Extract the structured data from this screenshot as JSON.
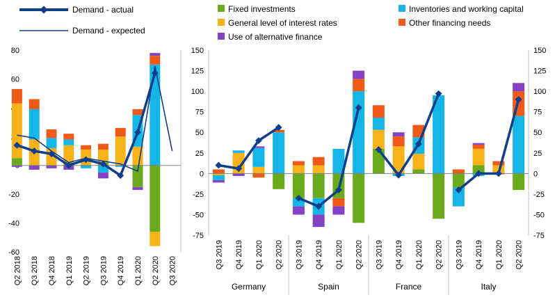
{
  "colors": {
    "fixed_investments": "#6aaa1d",
    "general_interest_rates": "#f7b21a",
    "inventories_working_capital": "#15b5e8",
    "other_financing": "#f05a19",
    "alternative_finance": "#8443c4",
    "demand_line": "#0f3f8a"
  },
  "legend": {
    "demand_actual": "Demand - actual",
    "demand_expected": "Demand - expected",
    "fixed_investments": "Fixed investments",
    "general_interest_rates": "General level of interest rates",
    "alternative_finance": "Use of alternative finance",
    "inventories_working_capital": "Inventories and working capital",
    "other_financing": "Other financing needs"
  },
  "chart_data": [
    {
      "type": "bar",
      "subtype": "stacked bar with lines",
      "categories": [
        "Q2 2018",
        "Q3 2018",
        "Q4 2018",
        "Q1 2019",
        "Q2 2019",
        "Q3 2019",
        "Q4 2019",
        "Q1 2020",
        "Q2 2020",
        "Q3 2020"
      ],
      "ylim": [
        -60,
        80
      ],
      "yticks": [
        "80",
        "60",
        "40",
        "20",
        "0",
        "-20",
        "-40",
        "-60"
      ],
      "series": [
        {
          "name": "Fixed investments",
          "values": [
            5,
            0,
            0,
            2,
            0,
            2,
            0,
            -15,
            -46,
            null
          ]
        },
        {
          "name": "General level of interest rates",
          "values": [
            38,
            18,
            12,
            12,
            11,
            9,
            20,
            13,
            -10,
            null
          ]
        },
        {
          "name": "Inventories and working capital",
          "values": [
            0,
            21,
            7,
            4,
            -2,
            -5,
            -1,
            22,
            70,
            null
          ]
        },
        {
          "name": "Other financing needs",
          "values": [
            10,
            7,
            6,
            4,
            3,
            4,
            6,
            4,
            6,
            null
          ]
        },
        {
          "name": "Use of alternative finance",
          "values": [
            -1,
            -3,
            -2,
            -3,
            0,
            -4,
            0,
            -2,
            2,
            null
          ]
        },
        {
          "name": "Demand - actual",
          "values": [
            14,
            10,
            8,
            0,
            4,
            1,
            -7,
            23,
            64,
            null
          ]
        },
        {
          "name": "Demand - expected",
          "values": [
            21,
            19,
            10,
            2,
            5,
            3,
            1,
            -4,
            69,
            10
          ]
        }
      ]
    },
    {
      "type": "bar",
      "subtype": "stacked bar with line, grouped by country",
      "groups": [
        "Germany",
        "Spain",
        "France",
        "Italy"
      ],
      "categories": [
        "Q3 2019",
        "Q4 2019",
        "Q1 2020",
        "Q2 2020"
      ],
      "ylim": [
        -75,
        150
      ],
      "yticks": [
        "150",
        "125",
        "100",
        "75",
        "50",
        "25",
        "0",
        "-25",
        "-50",
        "-75"
      ],
      "series": [
        {
          "name": "Fixed investments",
          "values": [
            [
              0,
              0,
              0,
              -19
            ],
            [
              -30,
              -30,
              -30,
              -60
            ],
            [
              30,
              0,
              5,
              -55
            ],
            [
              -17,
              10,
              0,
              -20
            ]
          ]
        },
        {
          "name": "General level of interest rates",
          "values": [
            [
              -2,
              25,
              8,
              0
            ],
            [
              10,
              10,
              0,
              0
            ],
            [
              23,
              33,
              19,
              0
            ],
            [
              0,
              20,
              10,
              0
            ]
          ]
        },
        {
          "name": "Inventories and working capital",
          "values": [
            [
              -6,
              3,
              23,
              50
            ],
            [
              -10,
              -20,
              30,
              100
            ],
            [
              15,
              -3,
              20,
              95
            ],
            [
              -23,
              -3,
              0,
              70
            ]
          ]
        },
        {
          "name": "Other financing needs",
          "values": [
            [
              5,
              0,
              -5,
              3
            ],
            [
              5,
              10,
              -10,
              15
            ],
            [
              15,
              12,
              15,
              0
            ],
            [
              5,
              5,
              5,
              30
            ]
          ]
        },
        {
          "name": "Use of alternative finance",
          "values": [
            [
              -3,
              -3,
              2,
              0
            ],
            [
              -10,
              -15,
              -10,
              10
            ],
            [
              0,
              5,
              0,
              0
            ],
            [
              0,
              2,
              -1,
              10
            ]
          ]
        },
        {
          "name": "Demand - actual",
          "values": [
            [
              10,
              6,
              40,
              56
            ],
            [
              -30,
              -40,
              -20,
              80
            ],
            [
              29,
              -2,
              36,
              97
            ],
            [
              -20,
              0,
              0,
              90
            ]
          ]
        }
      ]
    }
  ]
}
